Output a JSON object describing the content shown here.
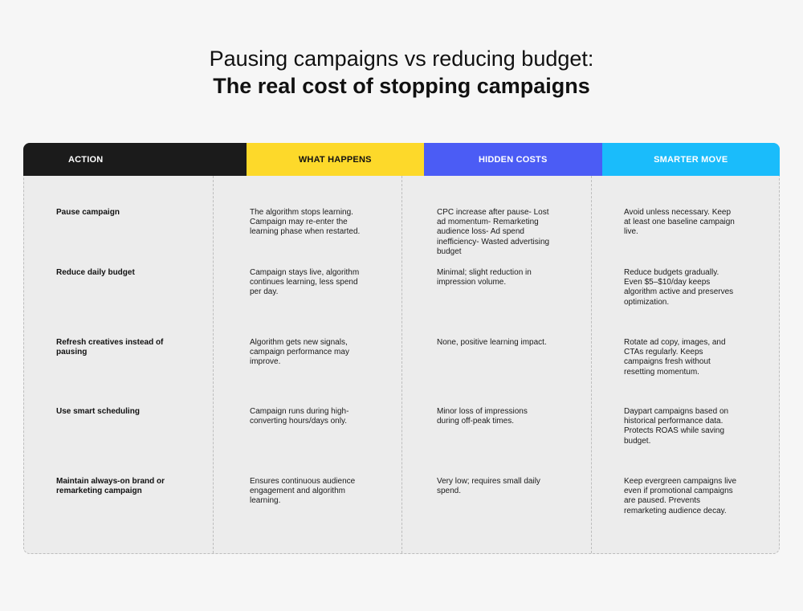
{
  "title": {
    "line1": "Pausing campaigns vs reducing budget:",
    "line2": "The real cost of stopping campaigns"
  },
  "colors": {
    "action_header_bg": "#1b1b1b",
    "action_header_text": "#ffffff",
    "what_header_bg": "#fdd92a",
    "what_header_text": "#111111",
    "hidden_header_bg": "#4b5cf5",
    "hidden_header_text": "#ffffff",
    "smarter_header_bg": "#1abcfb",
    "smarter_header_text": "#ffffff"
  },
  "headers": [
    "ACTION",
    "WHAT HAPPENS",
    "HIDDEN COSTS",
    "SMARTER MOVE"
  ],
  "rows": [
    {
      "action": "Pause campaign",
      "what": "The algorithm stops learning. Campaign may re-enter the learning phase when restarted.",
      "hidden": "CPC increase after pause- Lost ad momentum- Remarketing audience loss- Ad spend inefficiency- Wasted advertising budget",
      "smarter": "Avoid unless necessary. Keep at least one baseline campaign live."
    },
    {
      "action": "Reduce daily budget",
      "what": "Campaign stays live, algorithm continues learning, less spend per day.",
      "hidden": "Minimal; slight reduction in impression volume.",
      "smarter": "Reduce budgets gradually. Even $5–$10/day keeps algorithm active and preserves optimization."
    },
    {
      "action": "Refresh creatives instead of pausing",
      "what": "Algorithm gets new signals, campaign performance may improve.",
      "hidden": "None, positive learning impact.",
      "smarter": "Rotate ad copy, images, and CTAs regularly. Keeps campaigns fresh without resetting momentum."
    },
    {
      "action": "Use smart scheduling",
      "what": "Campaign runs during high-converting hours/days only.",
      "hidden": "Minor loss of impressions during off-peak times.",
      "smarter": "Daypart campaigns based on historical performance data. Protects ROAS while saving budget."
    },
    {
      "action": "Maintain always-on brand or remarketing campaign",
      "what": "Ensures continuous audience engagement and algorithm learning.",
      "hidden": "Very low; requires small daily spend.",
      "smarter": "Keep evergreen campaigns live even if promotional campaigns are paused. Prevents remarketing audience decay."
    }
  ]
}
